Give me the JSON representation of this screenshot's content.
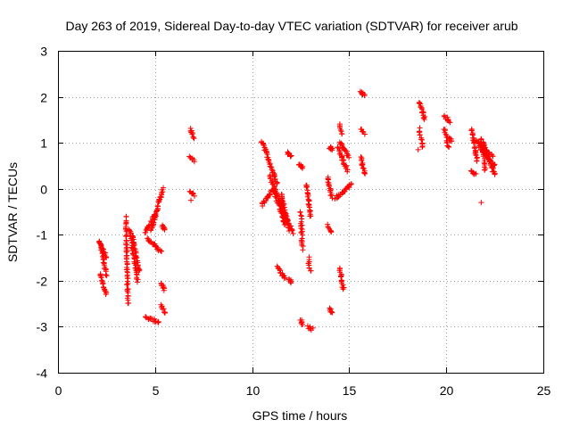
{
  "chart_data": {
    "type": "scatter",
    "title": "Day 263 of 2019, Sidereal Day-to-day VTEC variation (SDTVAR) for receiver arub",
    "xlabel": "GPS time / hours",
    "ylabel": "SDTVAR / TECUs",
    "xlim": [
      0,
      25
    ],
    "ylim": [
      -4,
      3
    ],
    "xticks": [
      0,
      5,
      10,
      15,
      20,
      25
    ],
    "yticks": [
      -4,
      -3,
      -2,
      -1,
      0,
      1,
      2,
      3
    ],
    "grid": true,
    "marker": "+",
    "color": "#ff0000",
    "segments": [
      {
        "x0": 2.1,
        "x1": 2.5,
        "y0": -1.15,
        "y1": -1.5
      },
      {
        "x0": 2.15,
        "x1": 2.5,
        "y0": -1.85,
        "y1": -2.3
      },
      {
        "x0": 2.2,
        "x1": 2.5,
        "y0": -1.2,
        "y1": -1.9
      },
      {
        "x0": 3.5,
        "x1": 3.6,
        "y0": -0.6,
        "y1": -2.5
      },
      {
        "x0": 3.7,
        "x1": 4.1,
        "y0": -0.9,
        "y1": -2.0
      },
      {
        "x0": 3.8,
        "x1": 4.2,
        "y0": -1.0,
        "y1": -1.8
      },
      {
        "x0": 4.5,
        "x1": 5.0,
        "y0": -0.95,
        "y1": -0.55
      },
      {
        "x0": 4.6,
        "x1": 5.3,
        "y0": -1.1,
        "y1": -1.35
      },
      {
        "x0": 4.8,
        "x1": 5.4,
        "y0": -0.9,
        "y1": 0.0
      },
      {
        "x0": 4.5,
        "x1": 5.2,
        "y0": -2.8,
        "y1": -2.9
      },
      {
        "x0": 5.3,
        "x1": 5.5,
        "y0": -2.05,
        "y1": -2.2
      },
      {
        "x0": 5.3,
        "x1": 5.5,
        "y0": -2.55,
        "y1": -2.7
      },
      {
        "x0": 5.35,
        "x1": 5.5,
        "y0": -0.8,
        "y1": -0.9
      },
      {
        "x0": 6.8,
        "x1": 7.0,
        "y0": 1.3,
        "y1": 1.1
      },
      {
        "x0": 6.8,
        "x1": 7.0,
        "y0": 0.7,
        "y1": 0.6
      },
      {
        "x0": 6.8,
        "x1": 7.0,
        "y0": -0.05,
        "y1": -0.15
      },
      {
        "x0": 10.5,
        "x1": 11.3,
        "y0": 1.05,
        "y1": 0.1
      },
      {
        "x0": 10.5,
        "x1": 11.0,
        "y0": -0.35,
        "y1": -0.05
      },
      {
        "x0": 10.9,
        "x1": 11.7,
        "y0": 0.3,
        "y1": -0.6
      },
      {
        "x0": 11.1,
        "x1": 11.7,
        "y0": 0.0,
        "y1": -0.8
      },
      {
        "x0": 11.5,
        "x1": 11.9,
        "y0": -0.1,
        "y1": -0.9
      },
      {
        "x0": 11.3,
        "x1": 11.7,
        "y0": -1.7,
        "y1": -1.95
      },
      {
        "x0": 11.7,
        "x1": 12.1,
        "y0": -0.55,
        "y1": -0.95
      },
      {
        "x0": 11.9,
        "x1": 12.0,
        "y0": -1.95,
        "y1": -2.05
      },
      {
        "x0": 11.8,
        "x1": 12.0,
        "y0": 0.8,
        "y1": 0.7
      },
      {
        "x0": 12.4,
        "x1": 12.6,
        "y0": 0.55,
        "y1": 0.45
      },
      {
        "x0": 12.5,
        "x1": 12.6,
        "y0": -0.5,
        "y1": -1.3
      },
      {
        "x0": 12.5,
        "x1": 12.6,
        "y0": -2.85,
        "y1": -2.95
      },
      {
        "x0": 12.8,
        "x1": 13.0,
        "y0": 0.1,
        "y1": -0.6
      },
      {
        "x0": 12.9,
        "x1": 13.0,
        "y0": -1.5,
        "y1": -1.8
      },
      {
        "x0": 12.9,
        "x1": 13.1,
        "y0": -3.0,
        "y1": -3.05
      },
      {
        "x0": 13.9,
        "x1": 14.1,
        "y0": 0.25,
        "y1": -0.2
      },
      {
        "x0": 14.0,
        "x1": 14.1,
        "y0": 0.9,
        "y1": 0.85
      },
      {
        "x0": 13.9,
        "x1": 14.1,
        "y0": -0.8,
        "y1": -0.95
      },
      {
        "x0": 14.0,
        "x1": 14.1,
        "y0": -2.6,
        "y1": -2.7
      },
      {
        "x0": 14.3,
        "x1": 15.1,
        "y0": -0.2,
        "y1": 0.1
      },
      {
        "x0": 14.4,
        "x1": 14.9,
        "y0": 0.9,
        "y1": 0.4
      },
      {
        "x0": 14.5,
        "x1": 15.0,
        "y0": 1.0,
        "y1": 0.7
      },
      {
        "x0": 14.5,
        "x1": 14.6,
        "y0": 1.4,
        "y1": 1.2
      },
      {
        "x0": 14.5,
        "x1": 14.7,
        "y0": -1.7,
        "y1": -2.2
      },
      {
        "x0": 15.6,
        "x1": 15.8,
        "y0": 2.1,
        "y1": 2.05
      },
      {
        "x0": 15.6,
        "x1": 15.8,
        "y0": 1.3,
        "y1": 1.2
      },
      {
        "x0": 15.6,
        "x1": 15.8,
        "y0": 0.7,
        "y1": 0.3
      },
      {
        "x0": 18.6,
        "x1": 18.9,
        "y0": 1.9,
        "y1": 1.5
      },
      {
        "x0": 18.6,
        "x1": 18.8,
        "y0": 1.3,
        "y1": 0.9
      },
      {
        "x0": 19.9,
        "x1": 20.2,
        "y0": 1.6,
        "y1": 1.45
      },
      {
        "x0": 19.9,
        "x1": 20.1,
        "y0": 1.3,
        "y1": 0.9
      },
      {
        "x0": 20.1,
        "x1": 20.3,
        "y0": 1.1,
        "y1": 1.05
      },
      {
        "x0": 21.3,
        "x1": 21.6,
        "y0": 1.3,
        "y1": 0.6
      },
      {
        "x0": 21.3,
        "x1": 21.5,
        "y0": 0.4,
        "y1": 0.3
      },
      {
        "x0": 21.5,
        "x1": 22.4,
        "y0": 1.05,
        "y1": 0.7
      },
      {
        "x0": 21.7,
        "x1": 22.5,
        "y0": 0.9,
        "y1": 0.5
      },
      {
        "x0": 21.8,
        "x1": 22.5,
        "y0": 1.1,
        "y1": 0.3
      },
      {
        "x0": 21.9,
        "x1": 22.0,
        "y0": 1.0,
        "y1": 0.4
      }
    ],
    "outliers": [
      {
        "x": 6.85,
        "y": -0.25
      },
      {
        "x": 18.55,
        "y": 0.85
      },
      {
        "x": 21.8,
        "y": -0.3
      }
    ]
  }
}
